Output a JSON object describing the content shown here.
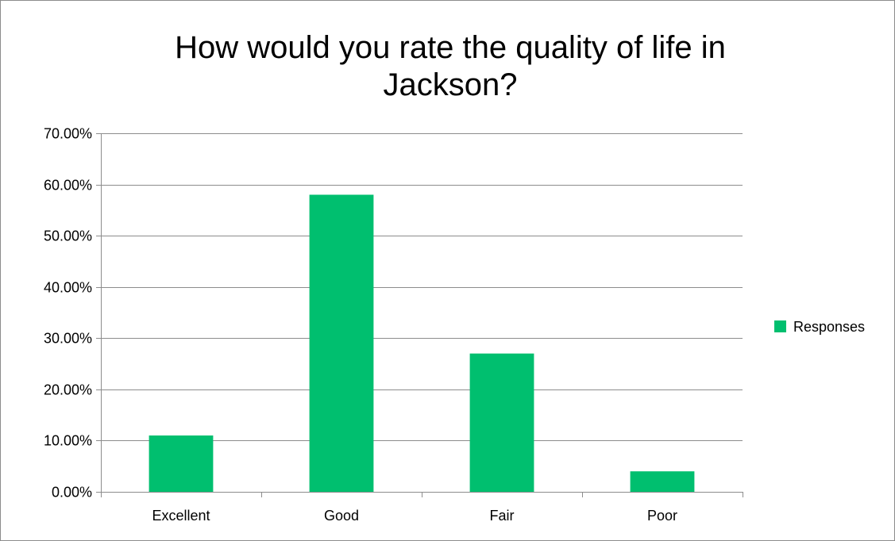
{
  "chart_data": {
    "type": "bar",
    "title": "How would you rate the quality of life in Jackson?",
    "title_lines": [
      "How would you rate the quality of life in",
      "Jackson?"
    ],
    "categories": [
      "Excellent",
      "Good",
      "Fair",
      "Poor"
    ],
    "series": [
      {
        "name": "Responses",
        "values": [
          11.0,
          58.0,
          27.0,
          4.0
        ]
      }
    ],
    "y_unit": "%",
    "ylim": [
      0,
      70
    ],
    "y_ticks": [
      0,
      10,
      20,
      30,
      40,
      50,
      60,
      70
    ],
    "y_tick_labels": [
      "0.00%",
      "10.00%",
      "20.00%",
      "30.00%",
      "40.00%",
      "50.00%",
      "60.00%",
      "70.00%"
    ],
    "xlabel": "",
    "ylabel": "",
    "grid": true,
    "legend_position": "right",
    "colors": {
      "bar": "#00bf6f",
      "grid": "#8c8c8c",
      "axis": "#8c8c8c"
    }
  }
}
